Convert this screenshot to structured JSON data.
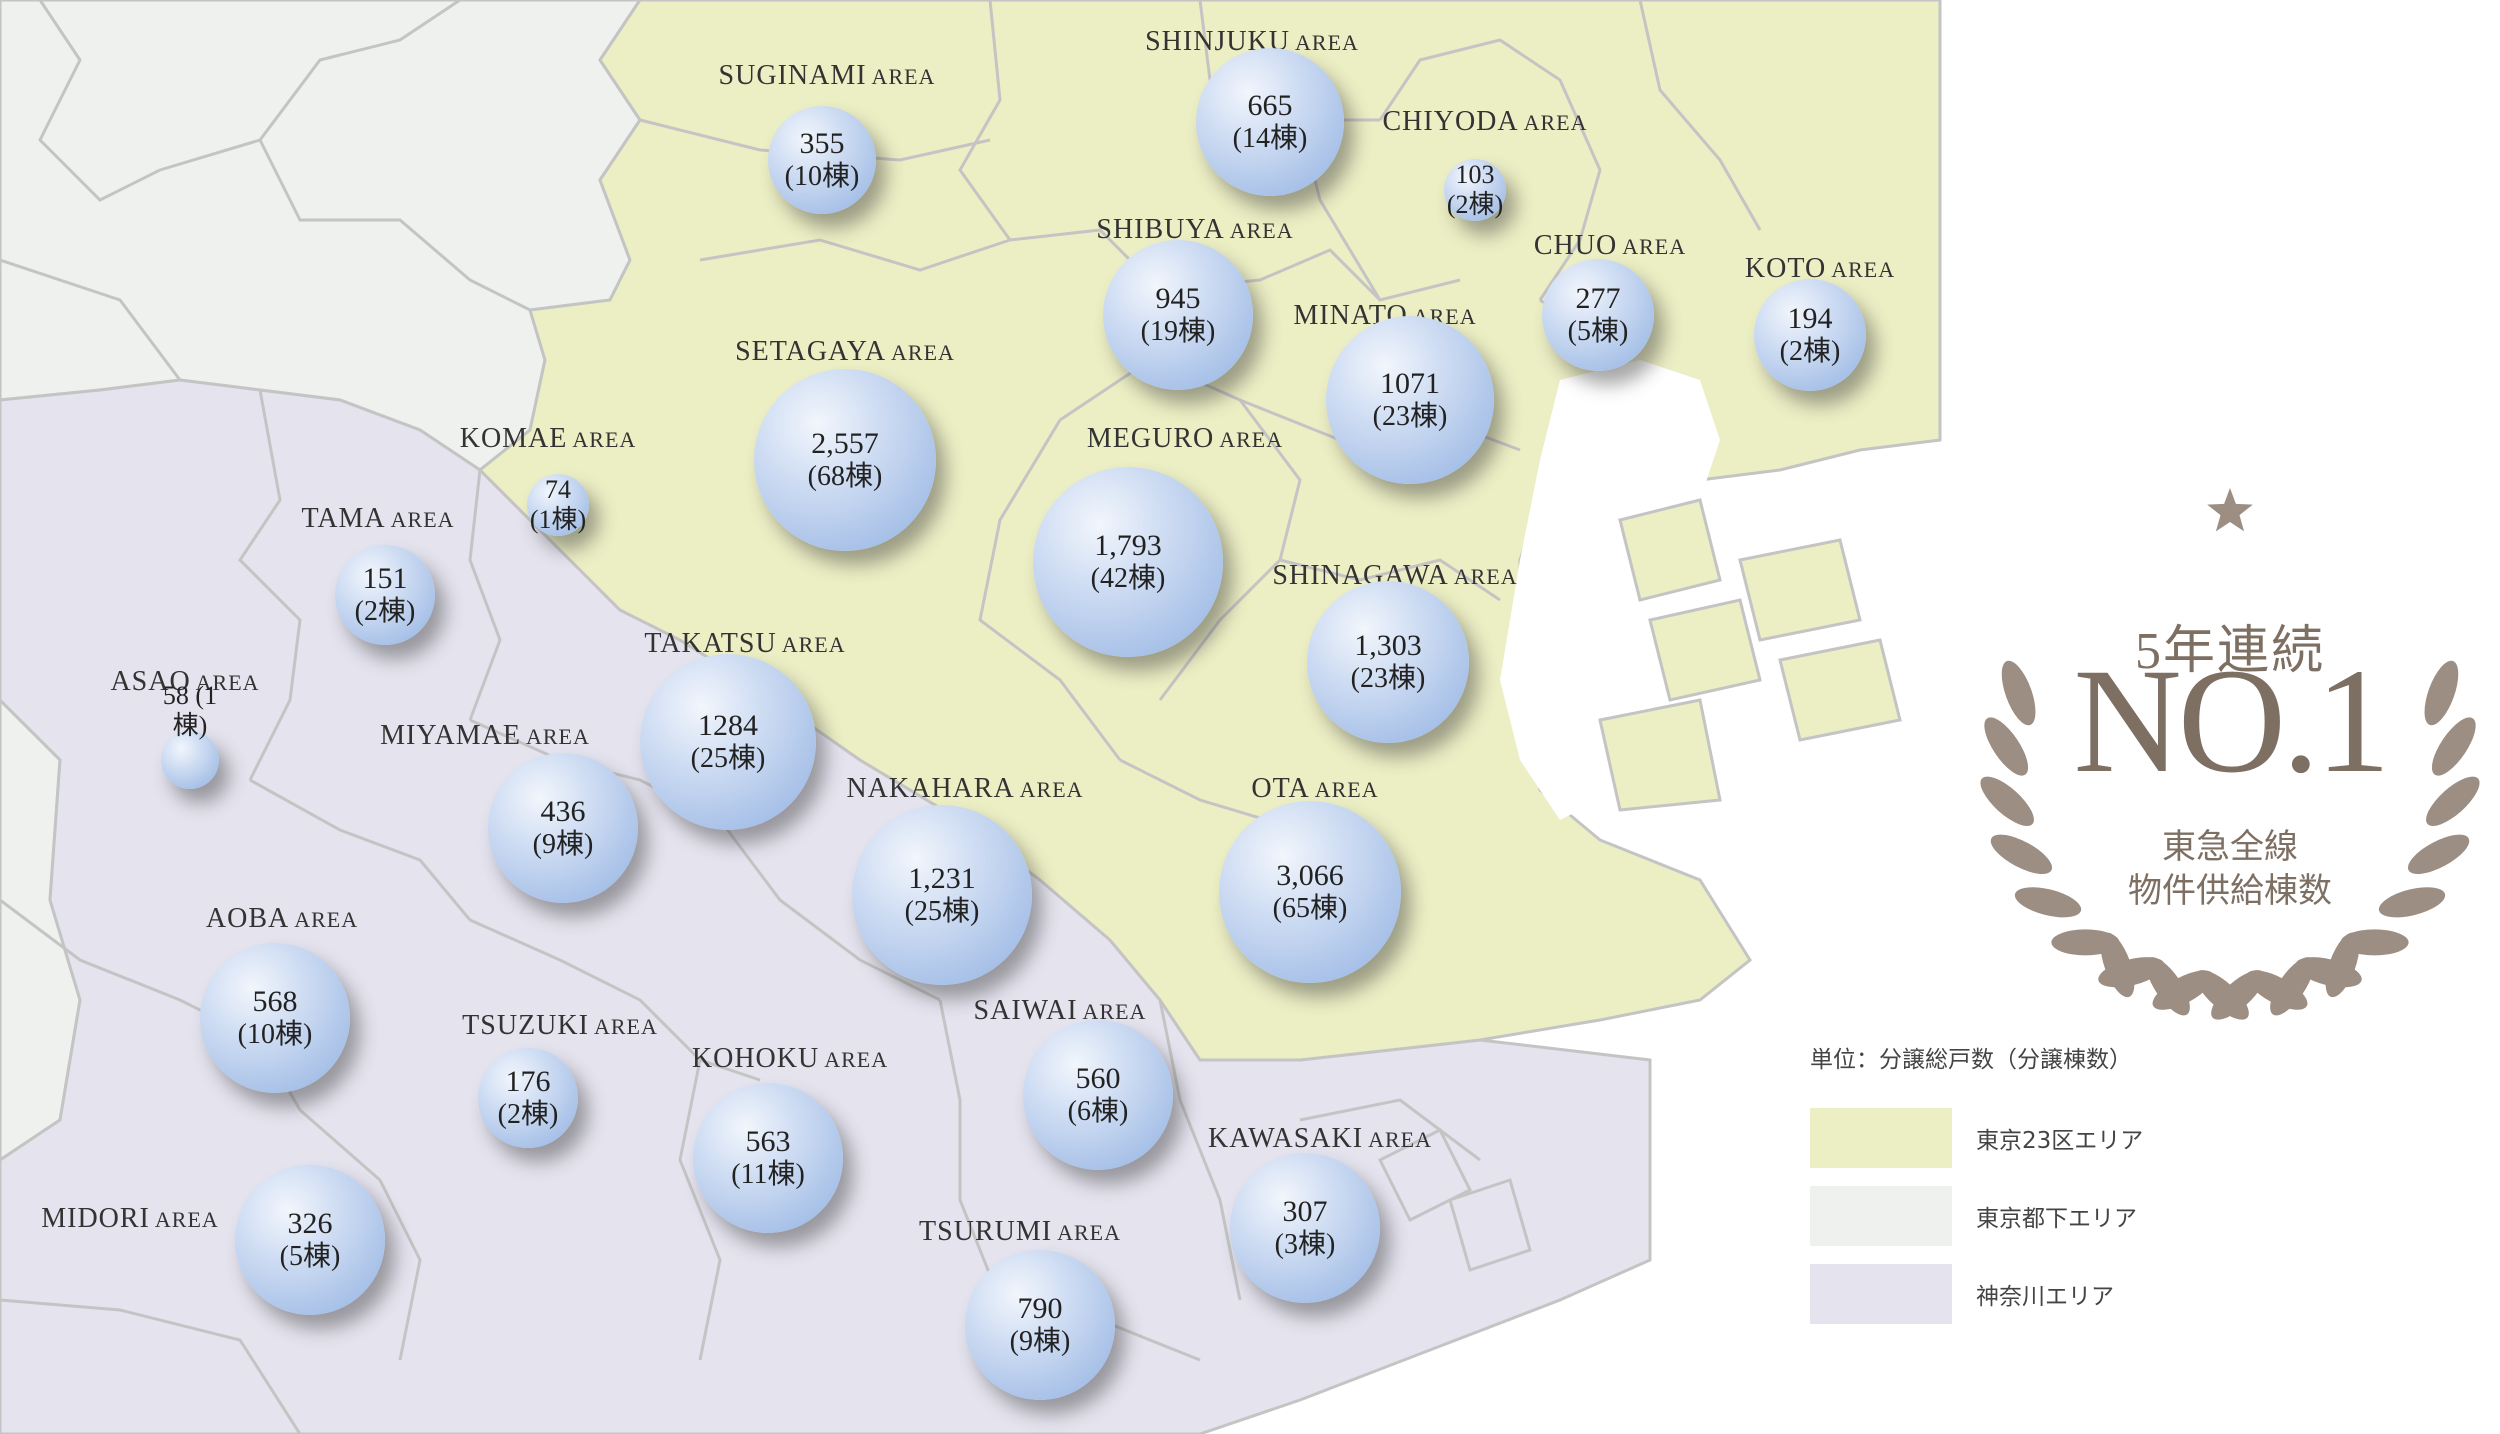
{
  "colors": {
    "tokyo23": "#eceec4",
    "tokyo_suburb": "#eef1ed",
    "kanagawa": "#e4e3ee",
    "water": "#ffffff",
    "border": "#bdbdbd",
    "award": "#9c8e82"
  },
  "labels": [
    {
      "id": "suginami",
      "name": "SUGINAMI",
      "suffix": "AREA"
    },
    {
      "id": "shinjuku",
      "name": "SHINJUKU",
      "suffix": "AREA"
    },
    {
      "id": "chiyoda",
      "name": "CHIYODA",
      "suffix": "AREA"
    },
    {
      "id": "shibuya",
      "name": "SHIBUYA",
      "suffix": "AREA"
    },
    {
      "id": "chuo",
      "name": "CHUO",
      "suffix": "AREA"
    },
    {
      "id": "koto",
      "name": "KOTO",
      "suffix": "AREA"
    },
    {
      "id": "setagaya",
      "name": "SETAGAYA",
      "suffix": "AREA"
    },
    {
      "id": "minato",
      "name": "MINATO",
      "suffix": "AREA"
    },
    {
      "id": "komae",
      "name": "KOMAE",
      "suffix": "AREA"
    },
    {
      "id": "meguro",
      "name": "MEGURO",
      "suffix": "AREA"
    },
    {
      "id": "tama",
      "name": "TAMA",
      "suffix": "AREA"
    },
    {
      "id": "shinagawa",
      "name": "SHINAGAWA",
      "suffix": "AREA"
    },
    {
      "id": "takatsu",
      "name": "TAKATSU",
      "suffix": "AREA"
    },
    {
      "id": "asao",
      "name": "ASAO",
      "suffix": "AREA"
    },
    {
      "id": "miyamae",
      "name": "MIYAMAE",
      "suffix": "AREA"
    },
    {
      "id": "nakahara",
      "name": "NAKAHARA",
      "suffix": "AREA"
    },
    {
      "id": "ota",
      "name": "OTA",
      "suffix": "AREA"
    },
    {
      "id": "aoba",
      "name": "AOBA",
      "suffix": "AREA"
    },
    {
      "id": "saiwai",
      "name": "SAIWAI",
      "suffix": "AREA"
    },
    {
      "id": "tsuzuki",
      "name": "TSUZUKI",
      "suffix": "AREA"
    },
    {
      "id": "kohoku",
      "name": "KOHOKU",
      "suffix": "AREA"
    },
    {
      "id": "kawasaki",
      "name": "KAWASAKI",
      "suffix": "AREA"
    },
    {
      "id": "midori",
      "name": "MIDORI",
      "suffix": "AREA"
    },
    {
      "id": "tsurumi",
      "name": "TSURUMI",
      "suffix": "AREA"
    }
  ],
  "bubbles": [
    {
      "id": "suginami",
      "value": "355",
      "count": "(10棟)"
    },
    {
      "id": "shinjuku",
      "value": "665",
      "count": "(14棟)"
    },
    {
      "id": "chiyoda",
      "value": "103",
      "count": "(2棟)"
    },
    {
      "id": "shibuya",
      "value": "945",
      "count": "(19棟)"
    },
    {
      "id": "chuo",
      "value": "277",
      "count": "(5棟)"
    },
    {
      "id": "koto",
      "value": "194",
      "count": "(2棟)"
    },
    {
      "id": "setagaya",
      "value": "2,557",
      "count": "(68棟)"
    },
    {
      "id": "minato",
      "value": "1071",
      "count": "(23棟)"
    },
    {
      "id": "komae",
      "value": "74",
      "count": "(1棟)"
    },
    {
      "id": "meguro",
      "value": "1,793",
      "count": "(42棟)"
    },
    {
      "id": "tama",
      "value": "151",
      "count": "(2棟)"
    },
    {
      "id": "shinagawa",
      "value": "1,303",
      "count": "(23棟)"
    },
    {
      "id": "takatsu",
      "value": "1284",
      "count": "(25棟)"
    },
    {
      "id": "asao",
      "value": "58 (1棟)",
      "count": ""
    },
    {
      "id": "miyamae",
      "value": "436",
      "count": "(9棟)"
    },
    {
      "id": "nakahara",
      "value": "1,231",
      "count": "(25棟)"
    },
    {
      "id": "ota",
      "value": "3,066",
      "count": "(65棟)"
    },
    {
      "id": "aoba",
      "value": "568",
      "count": "(10棟)"
    },
    {
      "id": "saiwai",
      "value": "560",
      "count": "(6棟)"
    },
    {
      "id": "tsuzuki",
      "value": "176",
      "count": "(2棟)"
    },
    {
      "id": "kohoku",
      "value": "563",
      "count": "(11棟)"
    },
    {
      "id": "kawasaki",
      "value": "307",
      "count": "(3棟)"
    },
    {
      "id": "midori",
      "value": "326",
      "count": "(5棟)"
    },
    {
      "id": "tsurumi",
      "value": "790",
      "count": "(9棟)"
    }
  ],
  "legend": {
    "unit": "単位：分譲総戸数（分譲棟数）",
    "items": [
      {
        "label": "東京23区エリア",
        "color": "#eceec4"
      },
      {
        "label": "東京都下エリア",
        "color": "#eef1ed"
      },
      {
        "label": "神奈川エリア",
        "color": "#e4e3ee"
      }
    ]
  },
  "award": {
    "line1": "5年連続",
    "big": "NO.1",
    "line2": "東急全線",
    "line3": "物件供給棟数"
  }
}
